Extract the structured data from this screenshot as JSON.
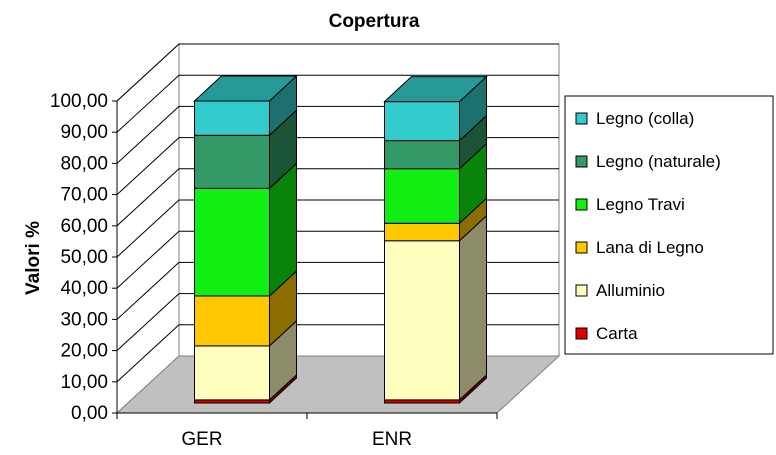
{
  "chart_data": {
    "type": "bar",
    "stacked": true,
    "three_d": true,
    "title": "Copertura",
    "ylabel": "Valori %",
    "xlabel": "",
    "ylim": [
      0,
      100
    ],
    "ytick_labels": [
      "0,00",
      "10,00",
      "20,00",
      "30,00",
      "40,00",
      "50,00",
      "60,00",
      "70,00",
      "80,00",
      "90,00",
      "100,00"
    ],
    "categories": [
      "GER",
      "ENR"
    ],
    "legend_position": "right",
    "grid": true,
    "series": [
      {
        "name": "Carta",
        "color": "#e00000",
        "values": [
          1.0,
          1.0
        ]
      },
      {
        "name": "Alluminio",
        "color": "#ffffc0",
        "values": [
          17.3,
          51.0
        ]
      },
      {
        "name": "Lana di Legno",
        "color": "#ffc800",
        "values": [
          16.0,
          5.6
        ]
      },
      {
        "name": "Legno Travi",
        "color": "#11ee11",
        "values": [
          34.5,
          17.5
        ]
      },
      {
        "name": "Legno (naturale)",
        "color": "#339966",
        "values": [
          17.0,
          9.0
        ]
      },
      {
        "name": "Legno (colla)",
        "color": "#33cccc",
        "values": [
          11.0,
          12.5
        ]
      }
    ]
  }
}
